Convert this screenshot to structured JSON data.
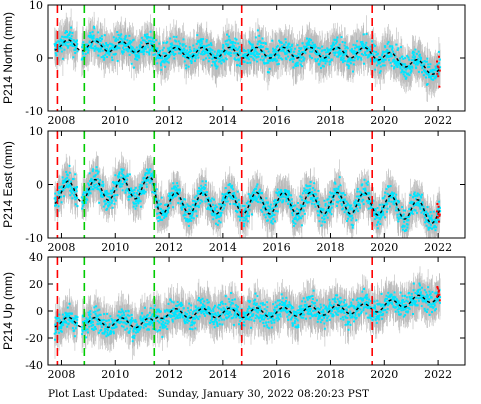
{
  "chart_data": {
    "type": "scatter",
    "x_ticks": [
      2008,
      2010,
      2012,
      2014,
      2016,
      2018,
      2020,
      2022
    ],
    "xlim": [
      2007.5,
      2023.0
    ],
    "data_range": [
      2007.75,
      2022.08
    ],
    "event_lines": [
      {
        "year": 2007.85,
        "color": "#ff0000"
      },
      {
        "year": 2008.85,
        "color": "#00cc00"
      },
      {
        "year": 2011.45,
        "color": "#00cc00"
      },
      {
        "year": 2014.7,
        "color": "#ff0000"
      },
      {
        "year": 2019.55,
        "color": "#ff0000"
      }
    ],
    "colors": {
      "error_bars": "#bbbbbb",
      "points": "#00e5ff",
      "model": "#000000",
      "recent_points": "#ff0000",
      "frame": "#000000"
    },
    "panels": [
      {
        "ylabel": "P214 North (mm)",
        "ylim": [
          -10,
          10
        ],
        "y_ticks": [
          -10,
          0,
          10
        ],
        "model_trend": [
          {
            "x": 2007.75,
            "y": 2.5
          },
          {
            "x": 2011.0,
            "y": 2.0
          },
          {
            "x": 2012.0,
            "y": 1.0
          },
          {
            "x": 2016.0,
            "y": 1.0
          },
          {
            "x": 2019.5,
            "y": 1.0
          },
          {
            "x": 2021.0,
            "y": -1.0
          },
          {
            "x": 2022.08,
            "y": -2.5
          }
        ],
        "seasonal_amplitude": 1.0,
        "scatter": 1.6,
        "error": 2.8
      },
      {
        "ylabel": "P214 East (mm)",
        "ylim": [
          -10,
          10
        ],
        "y_ticks": [
          -10,
          0,
          10
        ],
        "model_trend": [
          {
            "x": 2007.75,
            "y": -1.5
          },
          {
            "x": 2011.4,
            "y": -0.5
          },
          {
            "x": 2011.6,
            "y": -3.5
          },
          {
            "x": 2016.0,
            "y": -3.5
          },
          {
            "x": 2019.5,
            "y": -3.5
          },
          {
            "x": 2022.08,
            "y": -5.5
          }
        ],
        "seasonal_amplitude": 2.0,
        "scatter": 1.6,
        "error": 2.6
      },
      {
        "ylabel": "P214 Up (mm)",
        "ylim": [
          -40,
          40
        ],
        "y_ticks": [
          -40,
          -20,
          0,
          20,
          40
        ],
        "model_trend": [
          {
            "x": 2007.75,
            "y": -8.0
          },
          {
            "x": 2011.4,
            "y": -9.0
          },
          {
            "x": 2011.6,
            "y": -2.0
          },
          {
            "x": 2016.0,
            "y": -1.0
          },
          {
            "x": 2019.5,
            "y": 2.0
          },
          {
            "x": 2022.08,
            "y": 11.0
          }
        ],
        "seasonal_amplitude": 3.5,
        "scatter": 6.5,
        "error": 11.0
      }
    ]
  },
  "footer": {
    "label": "Plot Last Updated:",
    "timestamp": "Sunday, January 30, 2022 08:20:23 PST"
  }
}
